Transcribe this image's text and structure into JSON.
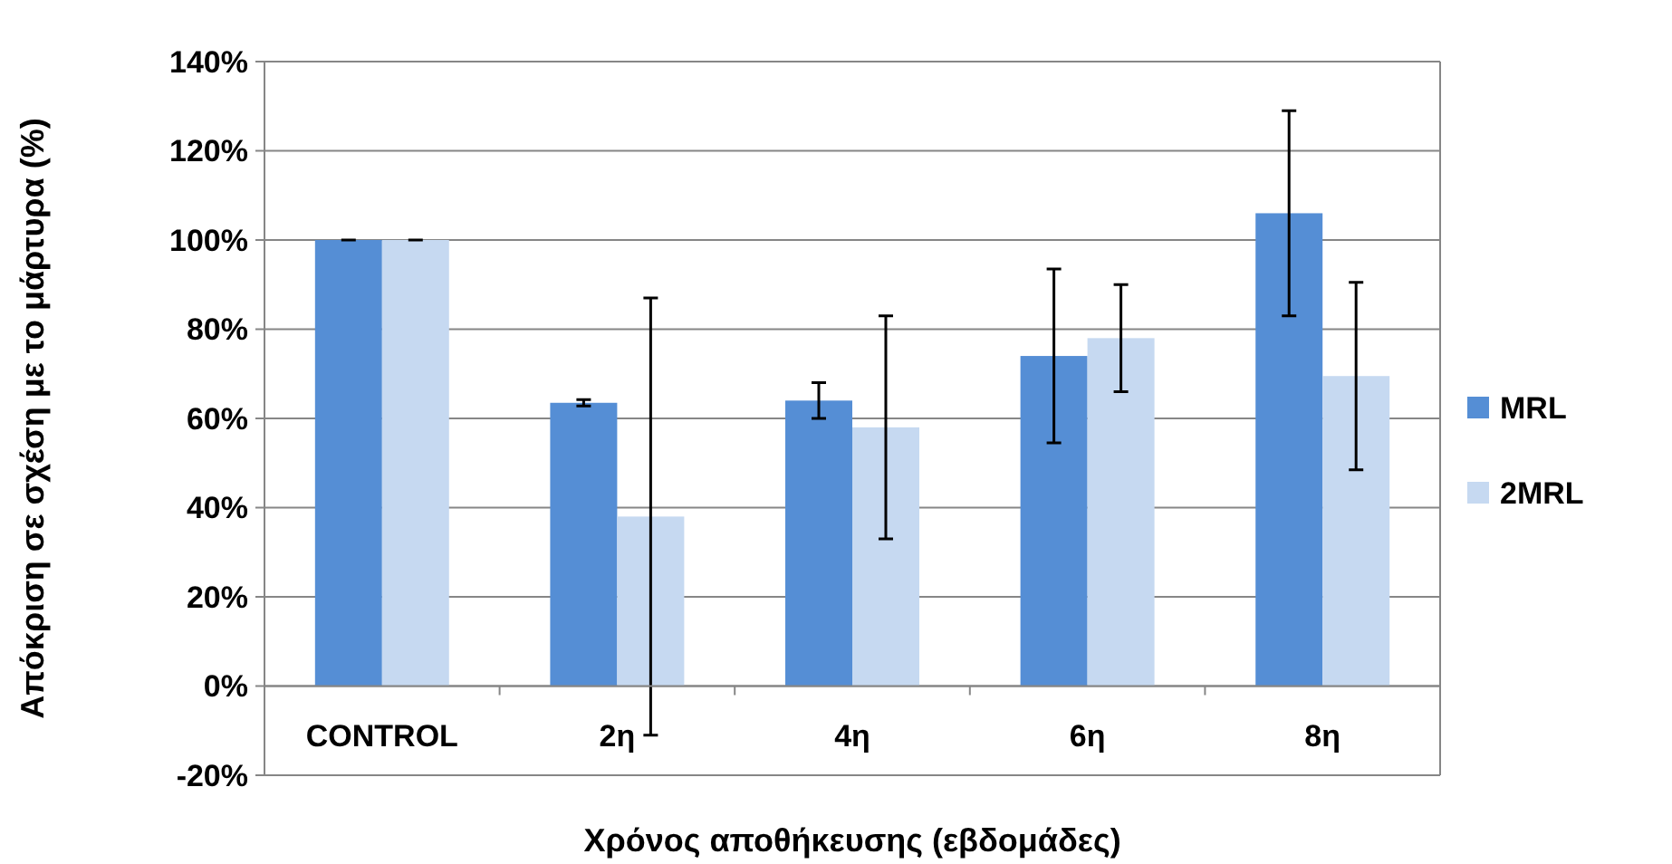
{
  "chart_data": {
    "type": "bar",
    "xlabel": "Χρόνος αποθήκευσης (εβδομάδες)",
    "ylabel": "Απόκριση σε σχέση με το μάρτυρα (%)",
    "categories": [
      "CONTROL",
      "2η",
      "4η",
      "6η",
      "8η"
    ],
    "series": [
      {
        "name": "MRL",
        "color": "#558ed5",
        "values": [
          100,
          63.5,
          64,
          74,
          106
        ],
        "errors": [
          0,
          0.7,
          4,
          19.5,
          23
        ]
      },
      {
        "name": "2MRL",
        "color": "#c6d9f1",
        "values": [
          100,
          38,
          58,
          78,
          69.5
        ],
        "errors": [
          0,
          49,
          25,
          12,
          21
        ]
      }
    ],
    "ylim": [
      -20,
      140
    ],
    "yticks": [
      {
        "value": -20,
        "label": "-20%"
      },
      {
        "value": 0,
        "label": "0%"
      },
      {
        "value": 20,
        "label": "20%"
      },
      {
        "value": 40,
        "label": "40%"
      },
      {
        "value": 60,
        "label": "60%"
      },
      {
        "value": 80,
        "label": "80%"
      },
      {
        "value": 100,
        "label": "100%"
      },
      {
        "value": 120,
        "label": "120%"
      },
      {
        "value": 140,
        "label": "140%"
      }
    ],
    "grid": "y",
    "legend": "right"
  }
}
